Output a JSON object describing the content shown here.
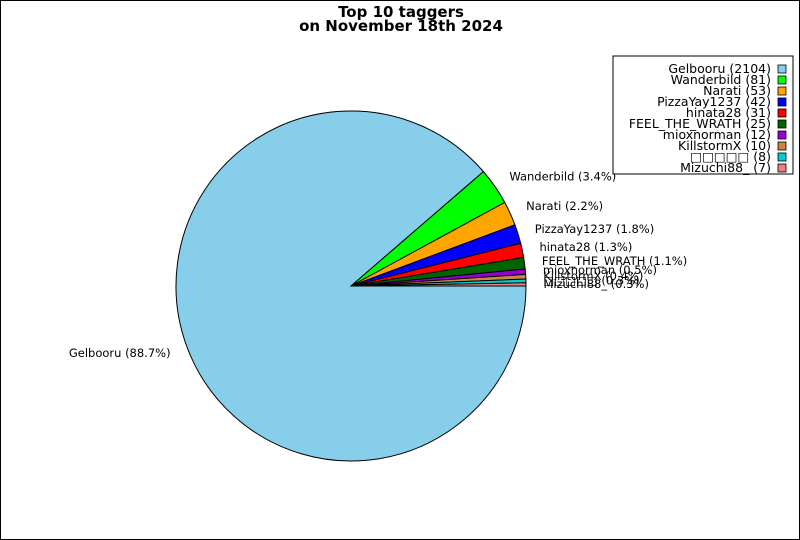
{
  "chart_data": {
    "type": "pie",
    "title": "Top 10 taggers",
    "subtitle": "on November 18th 2024",
    "legend_position": "top-right",
    "slices": [
      {
        "name": "Gelbooru",
        "value": 2104,
        "percent_label": "88.7%",
        "color": "#87ceeb"
      },
      {
        "name": "Wanderbild",
        "value": 81,
        "percent_label": "3.4%",
        "color": "#00ff00"
      },
      {
        "name": "Narati",
        "value": 53,
        "percent_label": "2.2%",
        "color": "#ffa500"
      },
      {
        "name": "PizzaYay1237",
        "value": 42,
        "percent_label": "1.8%",
        "color": "#0000ff"
      },
      {
        "name": "hinata28",
        "value": 31,
        "percent_label": "1.3%",
        "color": "#ff0000"
      },
      {
        "name": "FEEL_THE_WRATH",
        "value": 25,
        "percent_label": "1.1%",
        "color": "#006400"
      },
      {
        "name": "mioxnorman",
        "value": 12,
        "percent_label": "0.5%",
        "color": "#9400d3"
      },
      {
        "name": "KillstormX",
        "value": 10,
        "percent_label": "0.4%",
        "color": "#cd853f"
      },
      {
        "name": "□□□□□",
        "value": 8,
        "percent_label": "0.3%",
        "color": "#00ced1"
      },
      {
        "name": "Mizuchi88_",
        "value": 7,
        "percent_label": "0.3%",
        "color": "#f08080"
      }
    ]
  }
}
